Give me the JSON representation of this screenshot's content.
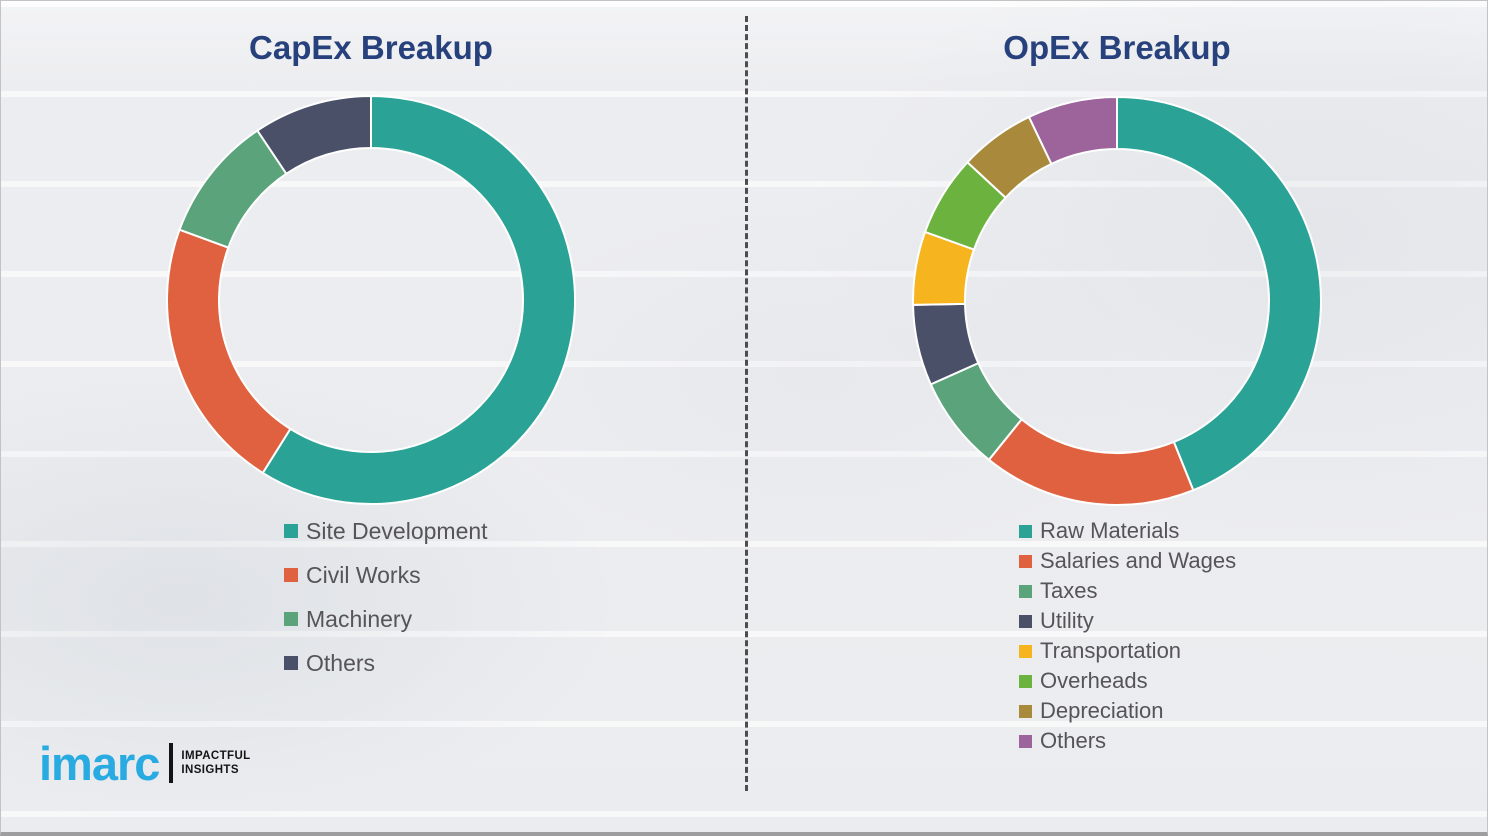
{
  "page": {
    "background_color": "#f1f1f3",
    "divider_color": "#4d4d4f",
    "title_color": "#27417c",
    "legend_text_color": "#565458"
  },
  "logo": {
    "brand": "imarc",
    "brand_color": "#29abe2",
    "tagline_line1": "IMPACTFUL",
    "tagline_line2": "INSIGHTS"
  },
  "chart_data": [
    {
      "type": "pie",
      "style": "donut",
      "title": "CapEx Breakup",
      "legend_position": "bottom-left",
      "start_angle_deg": 0,
      "direction": "clockwise",
      "segments": [
        {
          "label": "Site Development",
          "value": 58.9,
          "color": "#2aa396"
        },
        {
          "label": "Civil Works",
          "value": 21.7,
          "color": "#e0613f"
        },
        {
          "label": "Machinery",
          "value": 10.0,
          "color": "#5ba47b"
        },
        {
          "label": "Others",
          "value": 9.4,
          "color": "#4b5069"
        }
      ]
    },
    {
      "type": "pie",
      "style": "donut",
      "title": "OpEx Breakup",
      "legend_position": "bottom-left",
      "start_angle_deg": 0,
      "direction": "clockwise",
      "segments": [
        {
          "label": "Raw Materials",
          "value": 43.9,
          "color": "#2aa396"
        },
        {
          "label": "Salaries and Wages",
          "value": 16.9,
          "color": "#e0613f"
        },
        {
          "label": "Taxes",
          "value": 7.5,
          "color": "#5ba47b"
        },
        {
          "label": "Utility",
          "value": 6.4,
          "color": "#4b5069"
        },
        {
          "label": "Transportation",
          "value": 5.8,
          "color": "#f6b51f"
        },
        {
          "label": "Overheads",
          "value": 6.4,
          "color": "#6bb23e"
        },
        {
          "label": "Depreciation",
          "value": 6.0,
          "color": "#a98a3c"
        },
        {
          "label": "Others",
          "value": 7.1,
          "color": "#9d639b"
        }
      ]
    }
  ]
}
